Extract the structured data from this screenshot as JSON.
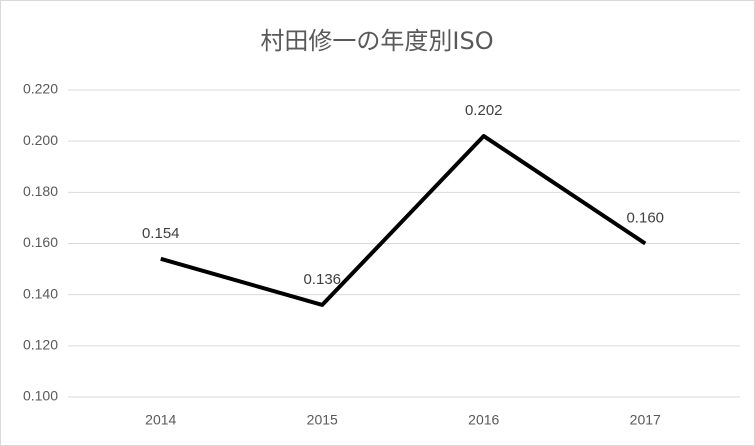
{
  "chart_data": {
    "type": "line",
    "title": "村田修一の年度別ISO",
    "categories": [
      "2014",
      "2015",
      "2016",
      "2017"
    ],
    "values": [
      0.154,
      0.136,
      0.202,
      0.16
    ],
    "value_labels": [
      "0.154",
      "0.136",
      "0.202",
      "0.160"
    ],
    "color": "#000000",
    "ylim": [
      0.1,
      0.22
    ],
    "yticks": [
      {
        "value": 0.1,
        "label": "0.100"
      },
      {
        "value": 0.12,
        "label": "0.120"
      },
      {
        "value": 0.14,
        "label": "0.140"
      },
      {
        "value": 0.16,
        "label": "0.160"
      },
      {
        "value": 0.18,
        "label": "0.180"
      },
      {
        "value": 0.2,
        "label": "0.200"
      },
      {
        "value": 0.22,
        "label": "0.220"
      }
    ],
    "grid": true
  }
}
